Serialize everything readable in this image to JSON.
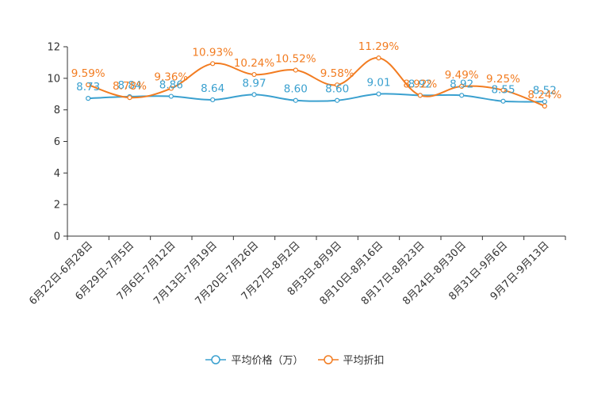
{
  "chart_data": {
    "type": "line",
    "categories": [
      "6月22日-6月28日",
      "6月29日-7月5日",
      "7月6日-7月12日",
      "7月13日-7月19日",
      "7月20日-7月26日",
      "7月27日-8月2日",
      "8月3日-8月9日",
      "8月10日-8月16日",
      "8月17日-8月23日",
      "8月24日-8月30日",
      "8月31日-9月6日",
      "9月7日-9月13日"
    ],
    "ylim": [
      0,
      12
    ],
    "yticks": [
      0,
      2,
      4,
      6,
      8,
      10,
      12
    ],
    "series": [
      {
        "name": "平均价格（万）",
        "color": "#3aa0cf",
        "values": [
          8.73,
          8.84,
          8.86,
          8.64,
          8.97,
          8.6,
          8.6,
          9.01,
          8.92,
          8.92,
          8.55,
          8.52
        ],
        "labels": [
          "8.73",
          "8.84",
          "8.86",
          "8.64",
          "8.97",
          "8.60",
          "8.60",
          "9.01",
          "8.92",
          "8.92",
          "8.55",
          "8.52"
        ]
      },
      {
        "name": "平均折扣",
        "color": "#f27c21",
        "values": [
          9.59,
          8.78,
          9.36,
          10.93,
          10.24,
          10.52,
          9.58,
          11.29,
          8.92,
          9.49,
          9.25,
          8.24
        ],
        "labels": [
          "9.59%",
          "8.78%",
          "9.36%",
          "10.93%",
          "10.24%",
          "10.52%",
          "9.58%",
          "11.29%",
          "8.92%",
          "9.49%",
          "9.25%",
          "8.24%"
        ]
      }
    ],
    "legend_position": "bottom"
  }
}
